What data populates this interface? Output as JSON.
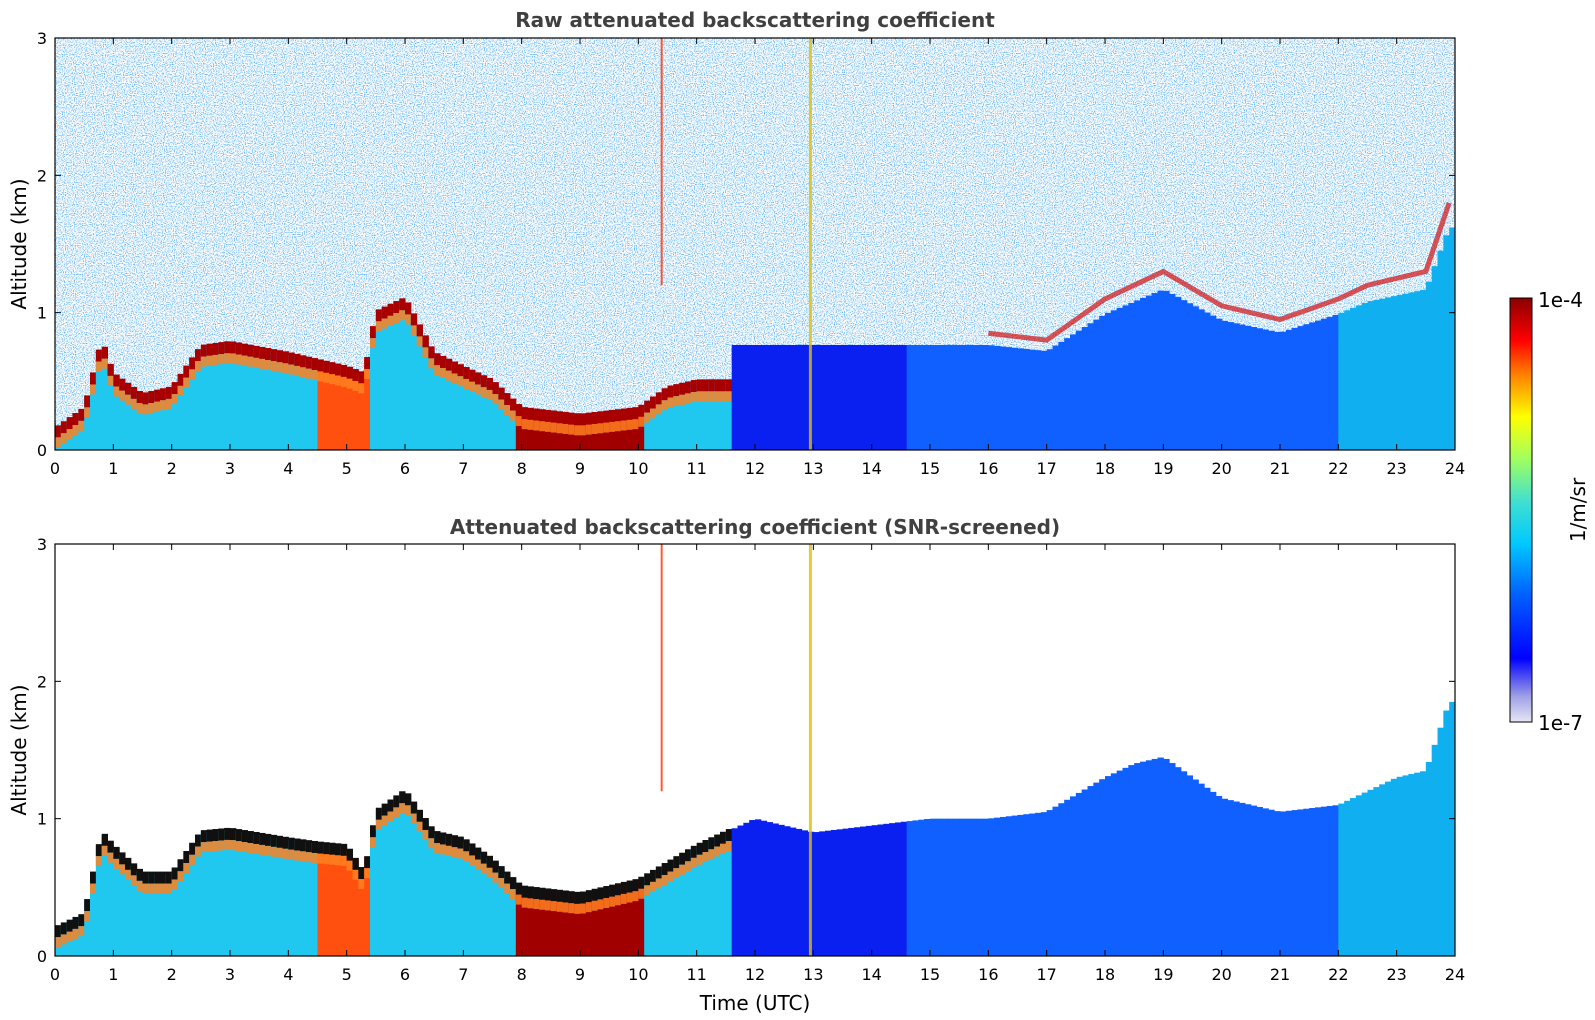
{
  "chart_data": [
    {
      "type": "heatmap",
      "title": "Raw attenuated backscattering coefficient",
      "xlabel": "",
      "ylabel": "Altitude (km)",
      "xlim": [
        0,
        24
      ],
      "ylim": [
        0,
        3
      ],
      "x_ticks": [
        "0",
        "1",
        "2",
        "3",
        "4",
        "5",
        "6",
        "7",
        "8",
        "9",
        "10",
        "11",
        "12",
        "13",
        "14",
        "15",
        "16",
        "17",
        "18",
        "19",
        "20",
        "21",
        "22",
        "23",
        "24"
      ],
      "y_ticks": [
        "0",
        "1",
        "2",
        "3"
      ],
      "screened": false,
      "boundary_layer_top_km": {
        "time_utc": [
          0,
          0.5,
          0.8,
          1.0,
          1.5,
          2.0,
          2.5,
          3.0,
          4.0,
          4.5,
          5.0,
          5.3,
          5.5,
          6.0,
          6.5,
          7.0,
          7.5,
          8.0,
          9.0,
          10.0,
          10.5,
          11.0
        ],
        "altitude_km": [
          0.15,
          0.3,
          0.8,
          0.55,
          0.4,
          0.45,
          0.75,
          0.78,
          0.7,
          0.65,
          0.6,
          0.55,
          1.0,
          1.1,
          0.7,
          0.6,
          0.5,
          0.3,
          0.25,
          0.3,
          0.45,
          0.5
        ]
      },
      "upper_layer_km": {
        "time_utc": [
          16,
          17,
          18,
          19,
          20,
          21,
          22,
          22.5,
          23,
          23.5,
          23.9
        ],
        "altitude_km": [
          0.85,
          0.8,
          1.1,
          1.3,
          1.05,
          0.95,
          1.1,
          1.2,
          1.25,
          1.3,
          1.8
        ]
      }
    },
    {
      "type": "heatmap",
      "title": "Attenuated backscattering coefficient (SNR-screened)",
      "xlabel": "Time (UTC)",
      "ylabel": "Altitude (km)",
      "xlim": [
        0,
        24
      ],
      "ylim": [
        0,
        3
      ],
      "x_ticks": [
        "0",
        "1",
        "2",
        "3",
        "4",
        "5",
        "6",
        "7",
        "8",
        "9",
        "10",
        "11",
        "12",
        "13",
        "14",
        "15",
        "16",
        "17",
        "18",
        "19",
        "20",
        "21",
        "22",
        "23",
        "24"
      ],
      "y_ticks": [
        "0",
        "1",
        "2",
        "3"
      ],
      "screened": true,
      "signal_top_km": {
        "time_utc": [
          0,
          0.5,
          0.8,
          1.0,
          1.5,
          2.0,
          2.5,
          3.0,
          4.0,
          4.5,
          5.0,
          5.3,
          5.5,
          6.0,
          6.5,
          7.0,
          7.5,
          8.0,
          9.0,
          10.0,
          11.0,
          12.0,
          13.0,
          14.0,
          15.0,
          16.0,
          17.0,
          18.0,
          18.5,
          19.0,
          19.5,
          20.0,
          21.0,
          22.0,
          23.0,
          23.5,
          23.9
        ],
        "altitude_km": [
          0.2,
          0.3,
          0.9,
          0.8,
          0.6,
          0.6,
          0.9,
          0.92,
          0.85,
          0.82,
          0.8,
          0.6,
          1.05,
          1.2,
          0.9,
          0.85,
          0.7,
          0.5,
          0.45,
          0.55,
          0.8,
          1.0,
          0.9,
          0.95,
          1.0,
          1.0,
          1.05,
          1.3,
          1.4,
          1.45,
          1.3,
          1.15,
          1.05,
          1.1,
          1.3,
          1.35,
          1.85
        ]
      }
    }
  ],
  "colorbar": {
    "label": "1/m/sr",
    "max_label": "1e-4",
    "min_label": "1e-7",
    "scale": "log",
    "colormap": [
      "#e6e6f5",
      "#a0a0e6",
      "#0000ff",
      "#0060ff",
      "#00c8ff",
      "#40e0d0",
      "#a0ff60",
      "#ffff00",
      "#ff8000",
      "#ff0000",
      "#8b0000"
    ]
  }
}
